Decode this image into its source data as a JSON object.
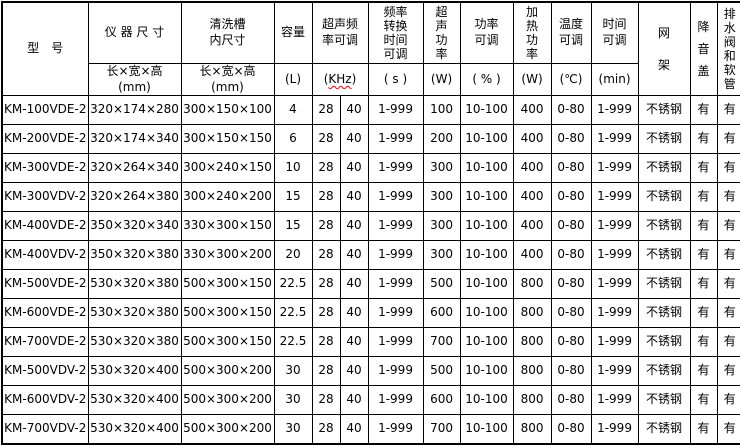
{
  "table": {
    "title_semantics": "ultrasonic-cleaner-spec-table",
    "header": {
      "model": "型　号",
      "instrument_size": "仪 器 尺 寸",
      "tank_size": "清洗槽\n内尺寸",
      "capacity": "容量",
      "freq_adjust": "超声频\n率可调",
      "freq_conv_time": "频率\n转换\n时间\n可调",
      "ultrasonic_power": "超\n声\n功\n率",
      "power_adjust": "功率\n可调",
      "heating_power": "加\n热\n功\n率",
      "temp_adjust": "温度\n可调",
      "time_adjust": "时间\n可调",
      "rack": "网\n架",
      "noise_cover": "降\n音\n盖",
      "drain": "排\n水\n阀\n和\n软\n管",
      "units": {
        "dims": "长×宽×高\n(mm)",
        "capacity": "(L)",
        "khz_open": "(",
        "khz_text": "KHz",
        "khz_close": ")",
        "seconds": "( s )",
        "watts": "(W)",
        "percent": "( % )",
        "heat_watts": "(W)",
        "celsius": "(℃)",
        "minutes": "(min)"
      }
    },
    "column_keys": [
      "model",
      "size",
      "tank",
      "capacity",
      "freq28",
      "freq40",
      "conv_time",
      "power",
      "power_adj",
      "heat",
      "temp",
      "time",
      "rack",
      "cover",
      "drain"
    ],
    "rows": [
      {
        "model": "KM-100VDE-2",
        "size": "320×174×280",
        "tank": "300×150×100",
        "capacity": "4",
        "freq28": "28",
        "freq40": "40",
        "conv_time": "1-999",
        "power": "100",
        "power_adj": "10-100",
        "heat": "400",
        "temp": "0-80",
        "time": "1-999",
        "rack": "不锈钢",
        "cover": "有",
        "drain": "有"
      },
      {
        "model": "KM-200VDE-2",
        "size": "320×174×340",
        "tank": "300×150×150",
        "capacity": "6",
        "freq28": "28",
        "freq40": "40",
        "conv_time": "1-999",
        "power": "200",
        "power_adj": "10-100",
        "heat": "400",
        "temp": "0-80",
        "time": "1-999",
        "rack": "不锈钢",
        "cover": "有",
        "drain": "有"
      },
      {
        "model": "KM-300VDE-2",
        "size": "320×264×340",
        "tank": "300×240×150",
        "capacity": "10",
        "freq28": "28",
        "freq40": "40",
        "conv_time": "1-999",
        "power": "300",
        "power_adj": "10-100",
        "heat": "400",
        "temp": "0-80",
        "time": "1-999",
        "rack": "不锈钢",
        "cover": "有",
        "drain": "有"
      },
      {
        "model": "KM-300VDV-2",
        "size": "320×264×380",
        "tank": "300×240×200",
        "capacity": "15",
        "freq28": "28",
        "freq40": "40",
        "conv_time": "1-999",
        "power": "300",
        "power_adj": "10-100",
        "heat": "400",
        "temp": "0-80",
        "time": "1-999",
        "rack": "不锈钢",
        "cover": "有",
        "drain": "有"
      },
      {
        "model": "KM-400VDE-2",
        "size": "350×320×340",
        "tank": "330×300×150",
        "capacity": "15",
        "freq28": "28",
        "freq40": "40",
        "conv_time": "1-999",
        "power": "300",
        "power_adj": "10-100",
        "heat": "400",
        "temp": "0-80",
        "time": "1-999",
        "rack": "不锈钢",
        "cover": "有",
        "drain": "有"
      },
      {
        "model": "KM-400VDV-2",
        "size": "350×320×380",
        "tank": "330×300×200",
        "capacity": "20",
        "freq28": "28",
        "freq40": "40",
        "conv_time": "1-999",
        "power": "300",
        "power_adj": "10-100",
        "heat": "400",
        "temp": "0-80",
        "time": "1-999",
        "rack": "不锈钢",
        "cover": "有",
        "drain": "有"
      },
      {
        "model": "KM-500VDE-2",
        "size": "530×320×380",
        "tank": "500×300×150",
        "capacity": "22.5",
        "freq28": "28",
        "freq40": "40",
        "conv_time": "1-999",
        "power": "500",
        "power_adj": "10-100",
        "heat": "800",
        "temp": "0-80",
        "time": "1-999",
        "rack": "不锈钢",
        "cover": "有",
        "drain": "有"
      },
      {
        "model": "KM-600VDE-2",
        "size": "530×320×380",
        "tank": "500×300×150",
        "capacity": "22.5",
        "freq28": "28",
        "freq40": "40",
        "conv_time": "1-999",
        "power": "600",
        "power_adj": "10-100",
        "heat": "800",
        "temp": "0-80",
        "time": "1-999",
        "rack": "不锈钢",
        "cover": "有",
        "drain": "有"
      },
      {
        "model": "KM-700VDE-2",
        "size": "530×320×380",
        "tank": "500×300×150",
        "capacity": "22.5",
        "freq28": "28",
        "freq40": "40",
        "conv_time": "1-999",
        "power": "700",
        "power_adj": "10-100",
        "heat": "800",
        "temp": "0-80",
        "time": "1-999",
        "rack": "不锈钢",
        "cover": "有",
        "drain": "有"
      },
      {
        "model": "KM-500VDV-2",
        "size": "530×320×400",
        "tank": "500×300×200",
        "capacity": "30",
        "freq28": "28",
        "freq40": "40",
        "conv_time": "1-999",
        "power": "500",
        "power_adj": "10-100",
        "heat": "800",
        "temp": "0-80",
        "time": "1-999",
        "rack": "不锈钢",
        "cover": "有",
        "drain": "有"
      },
      {
        "model": "KM-600VDV-2",
        "size": "530×320×400",
        "tank": "500×300×200",
        "capacity": "30",
        "freq28": "28",
        "freq40": "40",
        "conv_time": "1-999",
        "power": "600",
        "power_adj": "10-100",
        "heat": "800",
        "temp": "0-80",
        "time": "1-999",
        "rack": "不锈钢",
        "cover": "有",
        "drain": "有"
      },
      {
        "model": "KM-700VDV-2",
        "size": "530×320×400",
        "tank": "500×300×200",
        "capacity": "30",
        "freq28": "28",
        "freq40": "40",
        "conv_time": "1-999",
        "power": "700",
        "power_adj": "10-100",
        "heat": "800",
        "temp": "0-80",
        "time": "1-999",
        "rack": "不锈钢",
        "cover": "有",
        "drain": "有"
      }
    ],
    "colors": {
      "border": "#000000",
      "text": "#000000",
      "background": "#ffffff",
      "spellcheck_squiggle": "#ff0000"
    }
  }
}
